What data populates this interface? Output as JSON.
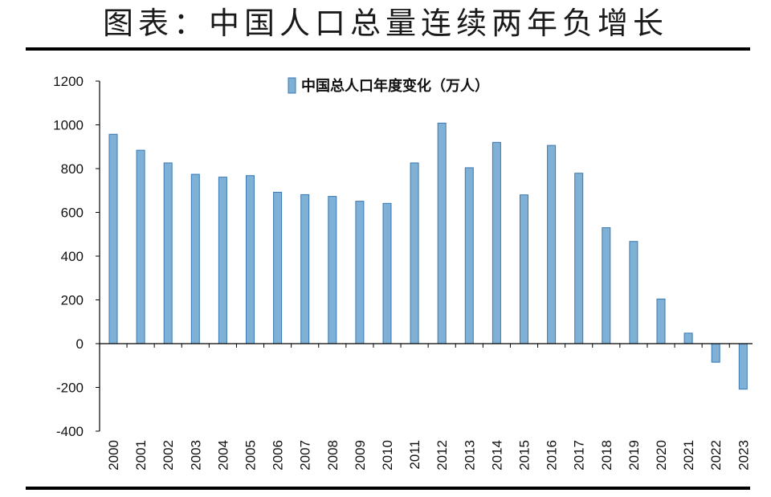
{
  "header": {
    "title": "图表：中国人口总量连续两年负增长"
  },
  "colors": {
    "bar_fill": "#7fb0d6",
    "bar_edge": "#3b78b0",
    "axis": "#000000"
  },
  "chart_data": {
    "type": "bar",
    "title": "",
    "xlabel": "",
    "ylabel": "",
    "ylim": [
      -400,
      1200
    ],
    "yticks": [
      -400,
      -200,
      0,
      200,
      400,
      600,
      800,
      1000,
      1200
    ],
    "grid": false,
    "legend_position": "top-center",
    "categories": [
      "2000",
      "2001",
      "2002",
      "2003",
      "2004",
      "2005",
      "2006",
      "2007",
      "2008",
      "2009",
      "2010",
      "2011",
      "2012",
      "2013",
      "2014",
      "2015",
      "2016",
      "2017",
      "2018",
      "2019",
      "2020",
      "2021",
      "2022",
      "2023"
    ],
    "series": [
      {
        "name": "中国总人口年度变化（万人）",
        "values": [
          957,
          884,
          826,
          774,
          761,
          768,
          692,
          681,
          673,
          651,
          641,
          826,
          1008,
          804,
          920,
          680,
          906,
          779,
          530,
          467,
          204,
          48,
          -85,
          -208
        ]
      }
    ]
  }
}
